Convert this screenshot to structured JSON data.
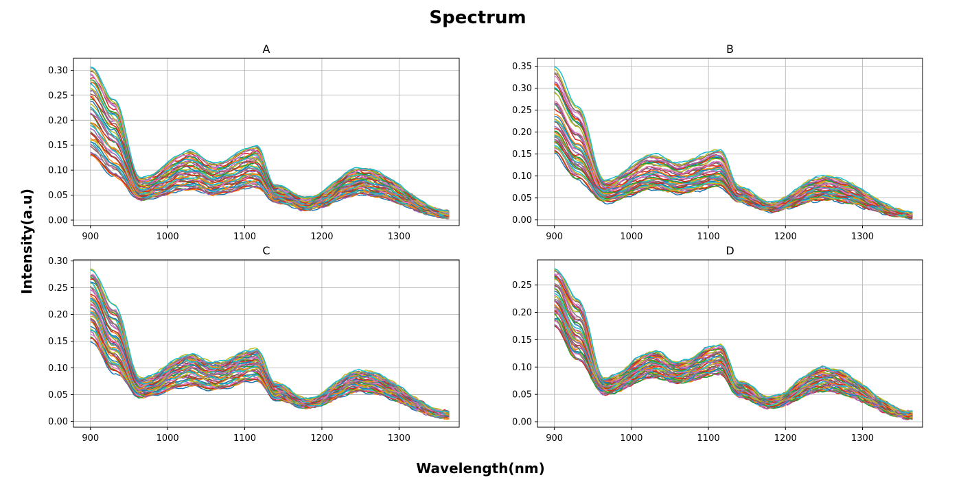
{
  "figure": {
    "title": "Spectrum",
    "xlabel": "Wavelength(nm)",
    "ylabel": "Intensity(a.u)"
  },
  "chart_data": [
    {
      "type": "line",
      "title": "A",
      "xlabel": "",
      "ylabel": "",
      "xlim": [
        878,
        1378
      ],
      "ylim": [
        -0.011,
        0.324
      ],
      "xticks": [
        900,
        1000,
        1100,
        1200,
        1300
      ],
      "xtick_labels": [
        "900",
        "1000",
        "1100",
        "1200",
        "1300"
      ],
      "yticks": [
        0.0,
        0.05,
        0.1,
        0.15,
        0.2,
        0.25,
        0.3
      ],
      "ytick_labels": [
        "0.00",
        "0.05",
        "0.10",
        "0.15",
        "0.20",
        "0.25",
        "0.30"
      ],
      "grid": true,
      "x_range": [
        900,
        1367
      ],
      "series_count": 50,
      "envelope": {
        "x": [
          900,
          930,
          965,
          1030,
          1060,
          1115,
          1140,
          1180,
          1250,
          1367
        ],
        "y_min": [
          0.125,
          0.085,
          0.04,
          0.06,
          0.05,
          0.065,
          0.035,
          0.02,
          0.05,
          0.005
        ],
        "y_mid": [
          0.215,
          0.16,
          0.06,
          0.095,
          0.08,
          0.1,
          0.05,
          0.033,
          0.075,
          0.012
        ],
        "y_max": [
          0.31,
          0.245,
          0.085,
          0.14,
          0.115,
          0.15,
          0.07,
          0.045,
          0.105,
          0.017
        ]
      }
    },
    {
      "type": "line",
      "title": "B",
      "xlabel": "",
      "ylabel": "",
      "xlim": [
        878,
        1378
      ],
      "ylim": [
        -0.013,
        0.368
      ],
      "xticks": [
        900,
        1000,
        1100,
        1200,
        1300
      ],
      "xtick_labels": [
        "900",
        "1000",
        "1100",
        "1200",
        "1300"
      ],
      "yticks": [
        0.0,
        0.05,
        0.1,
        0.15,
        0.2,
        0.25,
        0.3,
        0.35
      ],
      "ytick_labels": [
        "0.00",
        "0.05",
        "0.10",
        "0.15",
        "0.20",
        "0.25",
        "0.30",
        "0.35"
      ],
      "grid": true,
      "x_range": [
        900,
        1367
      ],
      "series_count": 50,
      "envelope": {
        "x": [
          900,
          930,
          965,
          1030,
          1060,
          1115,
          1140,
          1180,
          1250,
          1367
        ],
        "y_min": [
          0.15,
          0.09,
          0.04,
          0.07,
          0.06,
          0.075,
          0.04,
          0.02,
          0.045,
          0.005
        ],
        "y_mid": [
          0.21,
          0.15,
          0.065,
          0.1,
          0.09,
          0.11,
          0.055,
          0.03,
          0.07,
          0.012
        ],
        "y_max": [
          0.35,
          0.26,
          0.09,
          0.15,
          0.13,
          0.16,
          0.075,
          0.04,
          0.1,
          0.017
        ]
      }
    },
    {
      "type": "line",
      "title": "C",
      "xlabel": "",
      "ylabel": "",
      "xlim": [
        878,
        1378
      ],
      "ylim": [
        -0.011,
        0.302
      ],
      "xticks": [
        900,
        1000,
        1100,
        1200,
        1300
      ],
      "xtick_labels": [
        "900",
        "1000",
        "1100",
        "1200",
        "1300"
      ],
      "yticks": [
        0.0,
        0.05,
        0.1,
        0.15,
        0.2,
        0.25,
        0.3
      ],
      "ytick_labels": [
        "0.00",
        "0.05",
        "0.10",
        "0.15",
        "0.20",
        "0.25",
        "0.30"
      ],
      "grid": true,
      "x_range": [
        900,
        1367
      ],
      "series_count": 50,
      "envelope": {
        "x": [
          900,
          930,
          965,
          1030,
          1060,
          1115,
          1140,
          1180,
          1250,
          1367
        ],
        "y_min": [
          0.15,
          0.09,
          0.045,
          0.065,
          0.058,
          0.075,
          0.04,
          0.025,
          0.055,
          0.006
        ],
        "y_mid": [
          0.22,
          0.15,
          0.06,
          0.1,
          0.088,
          0.11,
          0.055,
          0.033,
          0.075,
          0.012
        ],
        "y_max": [
          0.285,
          0.22,
          0.08,
          0.125,
          0.11,
          0.135,
          0.072,
          0.042,
          0.095,
          0.017
        ]
      }
    },
    {
      "type": "line",
      "title": "D",
      "xlabel": "",
      "ylabel": "",
      "xlim": [
        878,
        1378
      ],
      "ylim": [
        -0.01,
        0.296
      ],
      "xticks": [
        900,
        1000,
        1100,
        1200,
        1300
      ],
      "xtick_labels": [
        "900",
        "1000",
        "1100",
        "1200",
        "1300"
      ],
      "yticks": [
        0.0,
        0.05,
        0.1,
        0.15,
        0.2,
        0.25
      ],
      "ytick_labels": [
        "0.00",
        "0.05",
        "0.10",
        "0.15",
        "0.20",
        "0.25"
      ],
      "grid": true,
      "x_range": [
        900,
        1367
      ],
      "series_count": 50,
      "envelope": {
        "x": [
          900,
          930,
          965,
          1030,
          1060,
          1115,
          1140,
          1180,
          1250,
          1367
        ],
        "y_min": [
          0.17,
          0.11,
          0.05,
          0.08,
          0.07,
          0.085,
          0.045,
          0.025,
          0.055,
          0.006
        ],
        "y_mid": [
          0.225,
          0.16,
          0.065,
          0.105,
          0.09,
          0.115,
          0.058,
          0.035,
          0.078,
          0.012
        ],
        "y_max": [
          0.285,
          0.23,
          0.08,
          0.13,
          0.11,
          0.143,
          0.075,
          0.045,
          0.1,
          0.017
        ]
      }
    }
  ]
}
